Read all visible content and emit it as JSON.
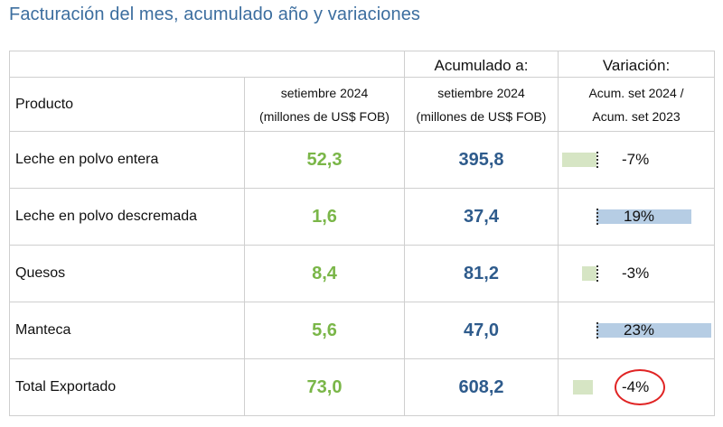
{
  "title": "Facturación del mes, acumulado año y variaciones",
  "header": {
    "acumulado_label": "Acumulado a:",
    "variacion_label": "Variación:",
    "producto_label": "Producto",
    "col_mes_line1": "setiembre 2024",
    "col_mes_line2": "(millones de US$ FOB)",
    "col_acum_line1": "setiembre 2024",
    "col_acum_line2": "(millones de US$ FOB)",
    "col_var_line1": "Acum. set 2024 /",
    "col_var_line2": "Acum. set 2023"
  },
  "rows": [
    {
      "product": "Leche en polvo entera",
      "month": "52,3",
      "accum": "395,8",
      "variation": "-7%",
      "variation_pct": -7
    },
    {
      "product": "Leche en polvo descremada",
      "month": "1,6",
      "accum": "37,4",
      "variation": "19%",
      "variation_pct": 19
    },
    {
      "product": "Quesos",
      "month": "8,4",
      "accum": "81,2",
      "variation": "-3%",
      "variation_pct": -3
    },
    {
      "product": "Manteca",
      "month": "5,6",
      "accum": "47,0",
      "variation": "23%",
      "variation_pct": 23
    },
    {
      "product": "Total Exportado",
      "month": "73,0",
      "accum": "608,2",
      "variation": "-4%",
      "variation_pct": -4,
      "highlighted": true
    }
  ],
  "colors": {
    "title": "#3c6e9f",
    "month_values": "#7ab648",
    "accum_values": "#2e5b8c",
    "negative_bar": "#d6e5c4",
    "positive_bar": "#b6cde4",
    "highlight_circle": "#e02424"
  }
}
